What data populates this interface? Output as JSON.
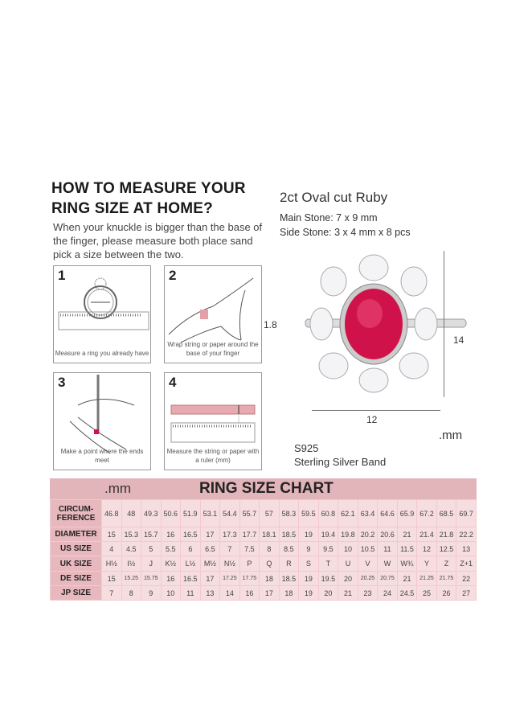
{
  "guide": {
    "title_line1": "HOW TO MEASURE YOUR",
    "title_line2": "RING SIZE AT HOME?",
    "intro": "When your knuckle is bigger than the base of the finger, please measure both place sand pick a size between the two.",
    "steps": [
      {
        "num": "1",
        "caption": "Measure a ring you already have"
      },
      {
        "num": "2",
        "caption": "Wrap string or paper around the base of your finger"
      },
      {
        "num": "3",
        "caption": "Make a point where the ends meet"
      },
      {
        "num": "4",
        "caption": "Measure the string or paper with a ruler (mm)"
      }
    ]
  },
  "product": {
    "title": "2ct Oval cut Ruby",
    "main_stone": "Main Stone: 7 x 9 mm",
    "side_stone": "Side Stone: 3 x 4 mm x 8 pcs",
    "dim_band": "1.8",
    "dim_height": "14",
    "dim_width": "12",
    "unit": ".mm",
    "material_code": "S925",
    "material": "Sterling Silver Band",
    "ruby_color": "#d0124a"
  },
  "chart": {
    "unit": ".mm",
    "title": "RING SIZE CHART",
    "header_color": "#e2b5ba",
    "rows": [
      {
        "label": "CIRCUM-\nFERENCE",
        "values": [
          "46.8",
          "48",
          "49.3",
          "50.6",
          "51.9",
          "53.1",
          "54.4",
          "55.7",
          "57",
          "58.3",
          "59.5",
          "60.8",
          "62.1",
          "63.4",
          "64.6",
          "65.9",
          "67.2",
          "68.5",
          "69.7"
        ]
      },
      {
        "label": "DIAMETER",
        "values": [
          "15",
          "15.3",
          "15.7",
          "16",
          "16.5",
          "17",
          "17.3",
          "17.7",
          "18.1",
          "18.5",
          "19",
          "19.4",
          "19.8",
          "20.2",
          "20.6",
          "21",
          "21.4",
          "21.8",
          "22.2"
        ]
      },
      {
        "label": "US SIZE",
        "values": [
          "4",
          "4.5",
          "5",
          "5.5",
          "6",
          "6.5",
          "7",
          "7.5",
          "8",
          "8.5",
          "9",
          "9.5",
          "10",
          "10.5",
          "11",
          "11.5",
          "12",
          "12.5",
          "13"
        ]
      },
      {
        "label": "UK SIZE",
        "values": [
          "H½",
          "I½",
          "J",
          "K½",
          "L½",
          "M½",
          "N½",
          "P",
          "Q",
          "R",
          "S",
          "T",
          "U",
          "V",
          "W",
          "W¾",
          "Y",
          "Z",
          "Z+1"
        ]
      },
      {
        "label": "DE SIZE",
        "values": [
          "15",
          "15.25",
          "15.75",
          "16",
          "16.5",
          "17",
          "17.25",
          "17.75",
          "18",
          "18.5",
          "19",
          "19.5",
          "20",
          "20.25",
          "20.75",
          "21",
          "21.25",
          "21.75",
          "22"
        ]
      },
      {
        "label": "JP SIZE",
        "values": [
          "7",
          "8",
          "9",
          "10",
          "11",
          "13",
          "14",
          "16",
          "17",
          "18",
          "19",
          "20",
          "21",
          "23",
          "24",
          "24.5",
          "25",
          "26",
          "27"
        ]
      }
    ]
  }
}
